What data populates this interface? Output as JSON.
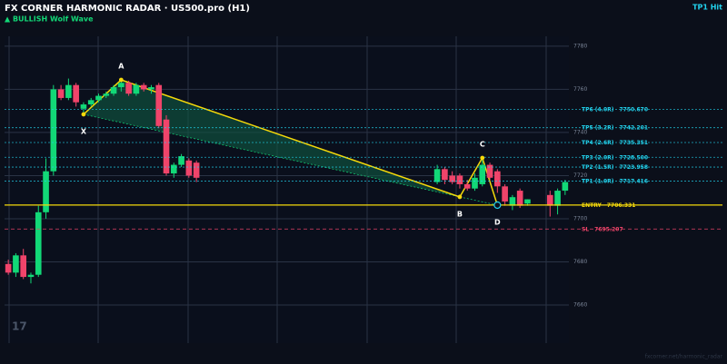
{
  "header": {
    "title": "FX CORNER HARMONIC RADAR  ·  US500.pro (H1)",
    "subtitle": "▲ BULLISH  Wolf Wave",
    "status": "TP1 Hit"
  },
  "footer": {
    "logo": "17",
    "watermark": "fxcorner.net/harmonic_radar"
  },
  "chart_data": {
    "type": "candlestick",
    "categories": [
      null,
      null,
      null,
      null,
      null,
      null,
      null,
      null,
      null,
      null,
      null,
      null,
      null,
      null,
      null,
      null,
      null,
      null,
      null,
      null,
      null,
      null,
      null,
      null,
      null,
      null,
      null,
      null,
      null,
      null,
      null,
      null,
      null,
      null,
      null,
      null,
      null,
      null,
      null,
      null,
      null,
      null,
      null,
      null,
      null,
      null,
      null,
      null,
      null,
      null,
      null,
      null,
      null,
      null,
      null,
      null,
      null,
      null,
      null,
      null,
      null,
      null,
      null,
      null,
      null,
      null,
      null,
      null,
      null,
      null,
      null,
      null,
      null,
      null,
      null
    ],
    "open": [
      7679,
      7675,
      7683,
      7673,
      7674,
      7703,
      7722,
      7760,
      7756,
      7762,
      7751,
      7753,
      7755,
      7757,
      7758,
      7761,
      7763,
      7758,
      7762,
      7760,
      7762,
      7746,
      7721,
      7725,
      7727,
      7726,
      null,
      null,
      null,
      null,
      null,
      null,
      null,
      null,
      null,
      null,
      null,
      null,
      null,
      null,
      null,
      null,
      null,
      null,
      null,
      null,
      null,
      null,
      null,
      null,
      null,
      null,
      null,
      null,
      null,
      null,
      null,
      7717,
      7723,
      7720,
      7720,
      7716,
      7714,
      7716,
      7725,
      7722,
      7715,
      7706,
      7713,
      7707,
      null,
      null,
      7711,
      7706,
      7713
    ],
    "high": [
      7681,
      7684,
      7686,
      7675,
      7706,
      7728,
      7762,
      7762,
      7765,
      7763,
      7754,
      7756,
      7758,
      7759,
      7762,
      7765,
      7764,
      7763,
      7763,
      7762,
      7763,
      7748,
      7726,
      7730,
      7728,
      7727,
      null,
      null,
      null,
      null,
      null,
      null,
      null,
      null,
      null,
      null,
      null,
      null,
      null,
      null,
      null,
      null,
      null,
      null,
      null,
      null,
      null,
      null,
      null,
      null,
      null,
      null,
      null,
      null,
      null,
      null,
      null,
      7725,
      7724,
      7722,
      7721,
      7718,
      7721,
      7729,
      7726,
      7723,
      7716,
      7711,
      7714,
      7709,
      null,
      null,
      7713,
      7714,
      7718
    ],
    "low": [
      7674,
      7673,
      7672,
      7670,
      7673,
      7700,
      7720,
      7755,
      7755,
      7752,
      7749,
      7752,
      7754,
      7756,
      7757,
      7759,
      7757,
      7757,
      7759,
      7758,
      7742,
      7720,
      7719,
      7724,
      7719,
      7717,
      null,
      null,
      null,
      null,
      null,
      null,
      null,
      null,
      null,
      null,
      null,
      null,
      null,
      null,
      null,
      null,
      null,
      null,
      null,
      null,
      null,
      null,
      null,
      null,
      null,
      null,
      null,
      null,
      null,
      null,
      null,
      7716,
      7716,
      7716,
      7714,
      7713,
      7713,
      7715,
      7718,
      7712,
      7706,
      7704,
      7705,
      7706,
      null,
      null,
      7701,
      7702,
      7711
    ],
    "close": [
      7675,
      7683,
      7673,
      7674,
      7703,
      7722,
      7760,
      7756,
      7762,
      7754,
      7753,
      7755,
      7757,
      7758,
      7761,
      7763,
      7758,
      7762,
      7760,
      7761,
      7743,
      7721,
      7725,
      7729,
      7720,
      7719,
      null,
      null,
      null,
      null,
      null,
      null,
      null,
      null,
      null,
      null,
      null,
      null,
      null,
      null,
      null,
      null,
      null,
      null,
      null,
      null,
      null,
      null,
      null,
      null,
      null,
      null,
      null,
      null,
      null,
      null,
      null,
      7723,
      7718,
      7717,
      7716,
      7714,
      7719,
      7725,
      7719,
      7715,
      7708,
      7710,
      7706,
      7709,
      null,
      null,
      7706,
      7713,
      7717
    ],
    "up_color": "#12d877",
    "down_color": "#f0446a",
    "ylim": [
      7642.3,
      7784.6
    ],
    "yticks": [
      7660,
      7680,
      7700,
      7720,
      7740,
      7760,
      7780
    ],
    "grid": true,
    "pattern": {
      "color": "#f5d90a",
      "fill": "#0f5a42",
      "points": [
        {
          "label": "X",
          "bar": 10,
          "price": 7748.4
        },
        {
          "label": "A",
          "bar": 15,
          "price": 7764.4
        },
        {
          "label": "B",
          "bar": 60,
          "price": 7710.1
        },
        {
          "label": "C",
          "bar": 63,
          "price": 7728.2
        },
        {
          "label": "D",
          "bar": 65,
          "price": 7706.3
        }
      ]
    },
    "levels": [
      {
        "name": "TP6 (4.0R)",
        "value": 7750.67,
        "value_label": "7750.670",
        "color": "#22d3ee"
      },
      {
        "name": "TP5 (3.2R)",
        "value": 7742.201,
        "color": "#22d3ee"
      },
      {
        "name": "TP4 (2.6R)",
        "value": 7735.351,
        "color": "#22d3ee"
      },
      {
        "name": "TP3 (2.0R)",
        "value": 7728.5,
        "value_label": "7728.500",
        "color": "#22d3ee"
      },
      {
        "name": "TP2 (1.5R)",
        "value": 7723.958,
        "color": "#22d3ee"
      },
      {
        "name": "TP1 (1.0R)",
        "value": 7717.416,
        "color": "#22d3ee"
      },
      {
        "name": "ENTRY",
        "value": 7706.331,
        "color": "#f5d90a"
      },
      {
        "name": "SL",
        "value": 7695.207,
        "color": "#f0446a"
      }
    ]
  }
}
